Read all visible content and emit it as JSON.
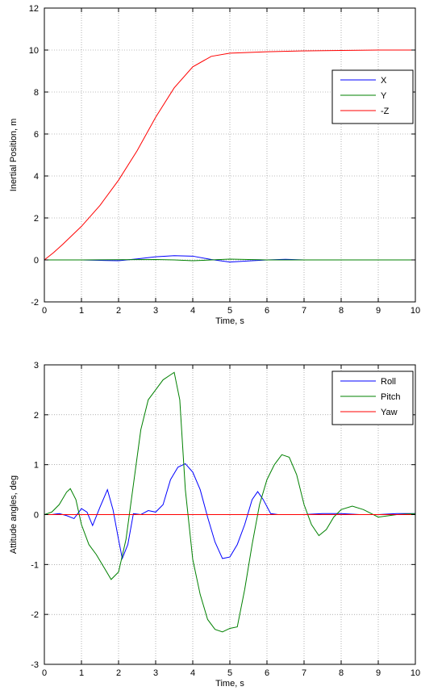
{
  "chart_data": [
    {
      "type": "line",
      "title": "",
      "xlabel": "Time, s",
      "ylabel": "Inertial Position, m",
      "xlim": [
        0,
        10
      ],
      "ylim": [
        -2,
        12
      ],
      "xticks": [
        0,
        1,
        2,
        3,
        4,
        5,
        6,
        7,
        8,
        9,
        10
      ],
      "yticks": [
        -2,
        0,
        2,
        4,
        6,
        8,
        10,
        12
      ],
      "grid": true,
      "legend_position": "right",
      "series": [
        {
          "name": "X",
          "color": "#0000ff",
          "x": [
            0,
            1,
            1.5,
            2,
            2.5,
            3,
            3.5,
            4,
            4.5,
            5,
            5.5,
            6,
            6.5,
            7,
            8,
            9,
            10
          ],
          "y": [
            0,
            0,
            -0.02,
            -0.04,
            0.05,
            0.15,
            0.2,
            0.18,
            0.02,
            -0.1,
            -0.05,
            0.0,
            0.03,
            0.0,
            0,
            0,
            0
          ]
        },
        {
          "name": "Y",
          "color": "#008000",
          "x": [
            0,
            1,
            2,
            3,
            3.5,
            4,
            4.5,
            5,
            5.5,
            6,
            7,
            8,
            9,
            10
          ],
          "y": [
            0,
            0,
            0.01,
            0.02,
            0.0,
            -0.04,
            0.0,
            0.04,
            0.02,
            0.0,
            0,
            0,
            0,
            0
          ]
        },
        {
          "name": "-Z",
          "color": "#ff0000",
          "x": [
            0,
            0.25,
            0.5,
            1,
            1.5,
            2,
            2.5,
            3,
            3.5,
            4,
            4.5,
            5,
            6,
            7,
            8,
            9,
            10
          ],
          "y": [
            0,
            0.35,
            0.75,
            1.6,
            2.6,
            3.8,
            5.2,
            6.8,
            8.2,
            9.2,
            9.7,
            9.85,
            9.92,
            9.96,
            9.98,
            10.0,
            10.0
          ]
        }
      ]
    },
    {
      "type": "line",
      "title": "",
      "xlabel": "Time, s",
      "ylabel": "Attitude angles, deg",
      "xlim": [
        0,
        10
      ],
      "ylim": [
        -3,
        3
      ],
      "xticks": [
        0,
        1,
        2,
        3,
        4,
        5,
        6,
        7,
        8,
        9,
        10
      ],
      "yticks": [
        -3,
        -2,
        -1,
        0,
        1,
        2,
        3
      ],
      "grid": true,
      "legend_position": "top-right",
      "series": [
        {
          "name": "Roll",
          "color": "#0000ff",
          "x": [
            0,
            0.2,
            0.4,
            0.6,
            0.8,
            1.0,
            1.15,
            1.3,
            1.5,
            1.7,
            1.85,
            2.0,
            2.1,
            2.25,
            2.4,
            2.6,
            2.8,
            3.0,
            3.2,
            3.4,
            3.6,
            3.8,
            4.0,
            4.2,
            4.4,
            4.6,
            4.8,
            5.0,
            5.2,
            5.4,
            5.6,
            5.75,
            5.9,
            6.1,
            6.3,
            6.6,
            7.0,
            7.5,
            8.0,
            8.5,
            9.0,
            9.5,
            10.0
          ],
          "y": [
            0,
            0.0,
            0.02,
            -0.02,
            -0.08,
            0.12,
            0.05,
            -0.22,
            0.15,
            0.5,
            0.1,
            -0.5,
            -0.88,
            -0.6,
            0.02,
            0.0,
            0.08,
            0.05,
            0.2,
            0.7,
            0.95,
            1.02,
            0.85,
            0.5,
            -0.05,
            -0.55,
            -0.88,
            -0.85,
            -0.6,
            -0.2,
            0.3,
            0.46,
            0.3,
            0.02,
            0.0,
            0.0,
            0.0,
            0.02,
            0.02,
            0.0,
            0.0,
            0.02,
            0.02
          ]
        },
        {
          "name": "Pitch",
          "color": "#008000",
          "x": [
            0,
            0.2,
            0.4,
            0.6,
            0.7,
            0.85,
            1.0,
            1.2,
            1.4,
            1.6,
            1.8,
            2.0,
            2.2,
            2.4,
            2.6,
            2.8,
            3.0,
            3.2,
            3.4,
            3.5,
            3.65,
            3.8,
            4.0,
            4.2,
            4.4,
            4.6,
            4.8,
            5.0,
            5.2,
            5.4,
            5.6,
            5.8,
            6.0,
            6.2,
            6.4,
            6.6,
            6.8,
            7.0,
            7.2,
            7.4,
            7.6,
            7.8,
            8.0,
            8.3,
            8.6,
            9.0,
            9.5,
            10.0
          ],
          "y": [
            0,
            0.05,
            0.2,
            0.45,
            0.52,
            0.3,
            -0.2,
            -0.6,
            -0.8,
            -1.05,
            -1.3,
            -1.15,
            -0.5,
            0.6,
            1.7,
            2.3,
            2.5,
            2.7,
            2.8,
            2.85,
            2.3,
            0.5,
            -0.9,
            -1.6,
            -2.1,
            -2.3,
            -2.35,
            -2.28,
            -2.25,
            -1.5,
            -0.6,
            0.2,
            0.7,
            1.0,
            1.2,
            1.15,
            0.8,
            0.2,
            -0.2,
            -0.42,
            -0.3,
            -0.05,
            0.1,
            0.17,
            0.1,
            -0.05,
            0.0,
            0.02
          ]
        },
        {
          "name": "Yaw",
          "color": "#ff0000",
          "x": [
            0,
            10
          ],
          "y": [
            0,
            0
          ]
        }
      ]
    }
  ]
}
